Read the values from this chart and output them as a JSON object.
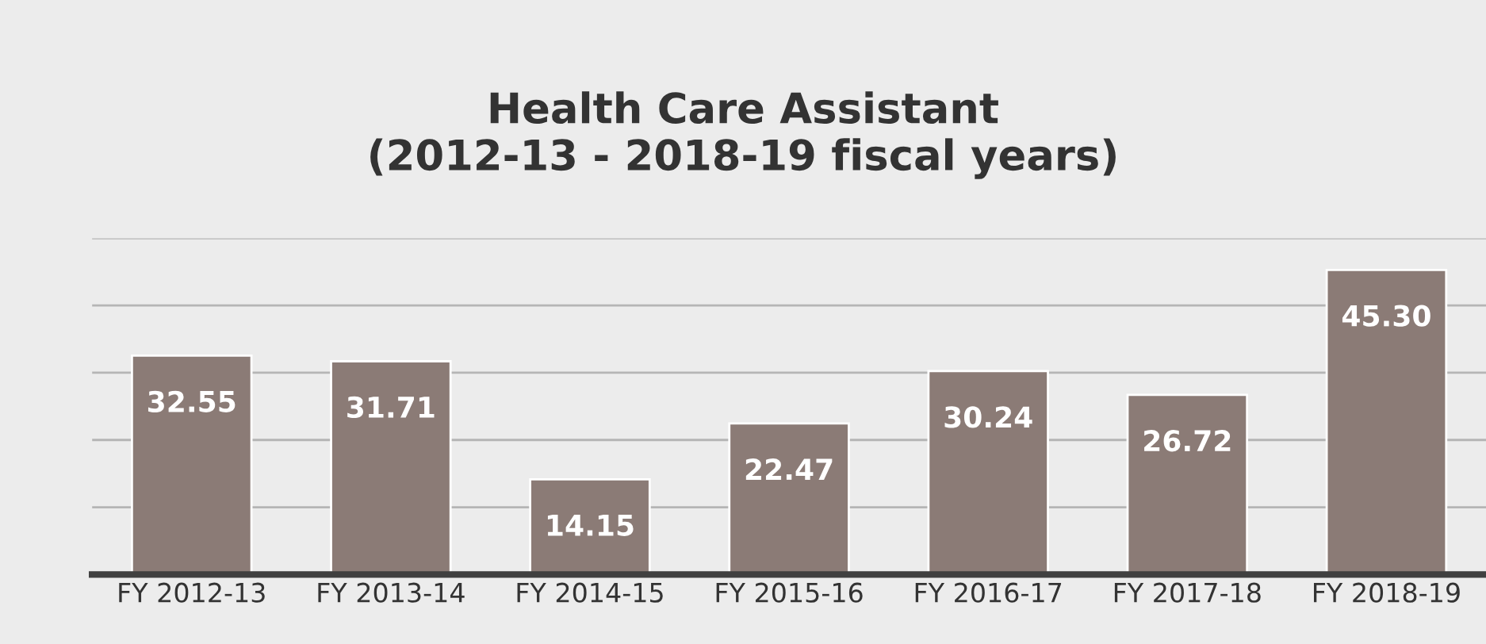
{
  "chart_data": {
    "type": "bar",
    "title": "Health Care Assistant\n(2012-13 - 2018-19 fiscal years)",
    "categories": [
      "FY 2012-13",
      "FY 2013-14",
      "FY 2014-15",
      "FY 2015-16",
      "FY 2016-17",
      "FY 2017-18",
      "FY 2018-19"
    ],
    "values": [
      32.55,
      31.71,
      14.15,
      22.47,
      30.24,
      26.72,
      45.3
    ],
    "value_labels": [
      "32.55",
      "31.71",
      "14.15",
      "22.47",
      "30.24",
      "26.72",
      "45.30"
    ],
    "color": "#8b7b76",
    "ylim": [
      0,
      50
    ],
    "yticks": [
      {
        "value": 0,
        "label": null
      },
      {
        "value": 10,
        "label": null
      },
      {
        "value": 20,
        "label": null
      },
      {
        "value": 30,
        "label": null
      },
      {
        "value": 40,
        "label": null
      },
      {
        "value": 50,
        "label": null
      }
    ],
    "grid": "y",
    "tick_labels": "x"
  }
}
